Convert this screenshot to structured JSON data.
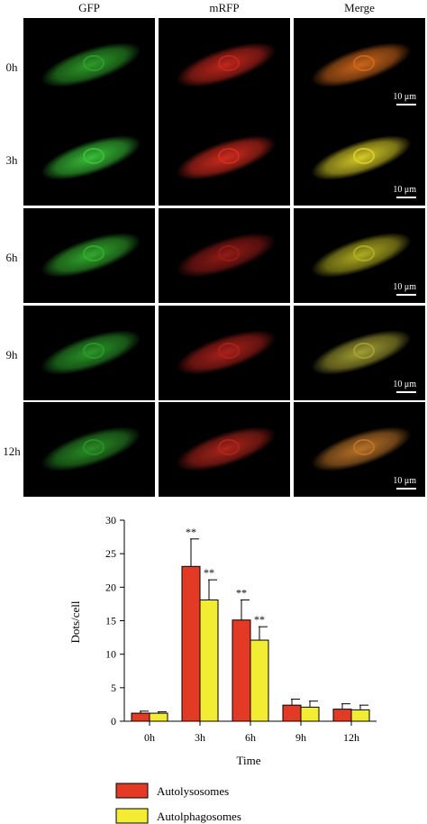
{
  "columns": [
    {
      "label": "GFP"
    },
    {
      "label": "mRFP"
    },
    {
      "label": "Merge"
    }
  ],
  "rows": [
    {
      "label": "0h",
      "scale_label": "10 μm",
      "colors": {
        "gfp": "#2fa32a",
        "rfp": "#c8281e",
        "merge": "#d46a1c"
      }
    },
    {
      "label": "3h",
      "scale_label": "10 μm",
      "colors": {
        "gfp": "#3cc73a",
        "rfp": "#d92d20",
        "merge": "#e0d42a"
      }
    },
    {
      "label": "6h",
      "scale_label": "10 μm",
      "colors": {
        "gfp": "#35b12f",
        "rfp": "#9a1c18",
        "merge": "#b7b323"
      }
    },
    {
      "label": "9h",
      "scale_label": "10 μm",
      "colors": {
        "gfp": "#2c9e2a",
        "rfp": "#b3221c",
        "merge": "#a9a535"
      }
    },
    {
      "label": "12h",
      "scale_label": "10 μm",
      "colors": {
        "gfp": "#2c9528",
        "rfp": "#b5261d",
        "merge": "#c4782a"
      }
    }
  ],
  "chart_data": {
    "type": "bar",
    "categories": [
      "0h",
      "3h",
      "6h",
      "9h",
      "12h"
    ],
    "series": [
      {
        "name": "Autolysosomes",
        "color": "#e23a24",
        "values": [
          1.2,
          23.1,
          15.1,
          2.4,
          1.8
        ],
        "errors": [
          0.3,
          4.1,
          3.0,
          0.9,
          0.8
        ],
        "annotations": [
          "",
          "**",
          "**",
          "",
          ""
        ]
      },
      {
        "name": "Autolphagosomes",
        "color": "#f2ec33",
        "values": [
          1.2,
          18.1,
          12.1,
          2.1,
          1.7
        ],
        "errors": [
          0.2,
          3.0,
          2.0,
          0.9,
          0.7
        ],
        "annotations": [
          "",
          "**",
          "**",
          "",
          ""
        ]
      }
    ],
    "xlabel": "Time",
    "ylabel": "Dots/cell",
    "ylim": [
      0,
      30
    ],
    "yticks": [
      "0",
      "5",
      "10",
      "15",
      "20",
      "25",
      "30"
    ],
    "grid": false,
    "legend_position": "bottom"
  }
}
